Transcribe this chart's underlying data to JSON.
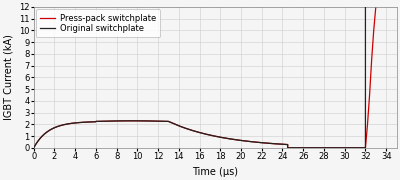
{
  "xlabel": "Time (μs)",
  "ylabel": "IGBT Current (kA)",
  "xlim": [
    0,
    35
  ],
  "ylim": [
    0,
    12
  ],
  "xticks": [
    0,
    2,
    4,
    6,
    8,
    10,
    12,
    14,
    16,
    18,
    20,
    22,
    24,
    26,
    28,
    30,
    32,
    34
  ],
  "yticks": [
    0,
    1,
    2,
    3,
    4,
    5,
    6,
    7,
    8,
    9,
    10,
    11,
    12
  ],
  "legend_labels": [
    "Original switchplate",
    "Press-pack switchplate"
  ],
  "line_colors": [
    "#222222",
    "#cc0000"
  ],
  "background_color": "#f5f5f5",
  "grid_color": "#cccccc",
  "figsize": [
    4.0,
    1.8
  ],
  "dpi": 100
}
